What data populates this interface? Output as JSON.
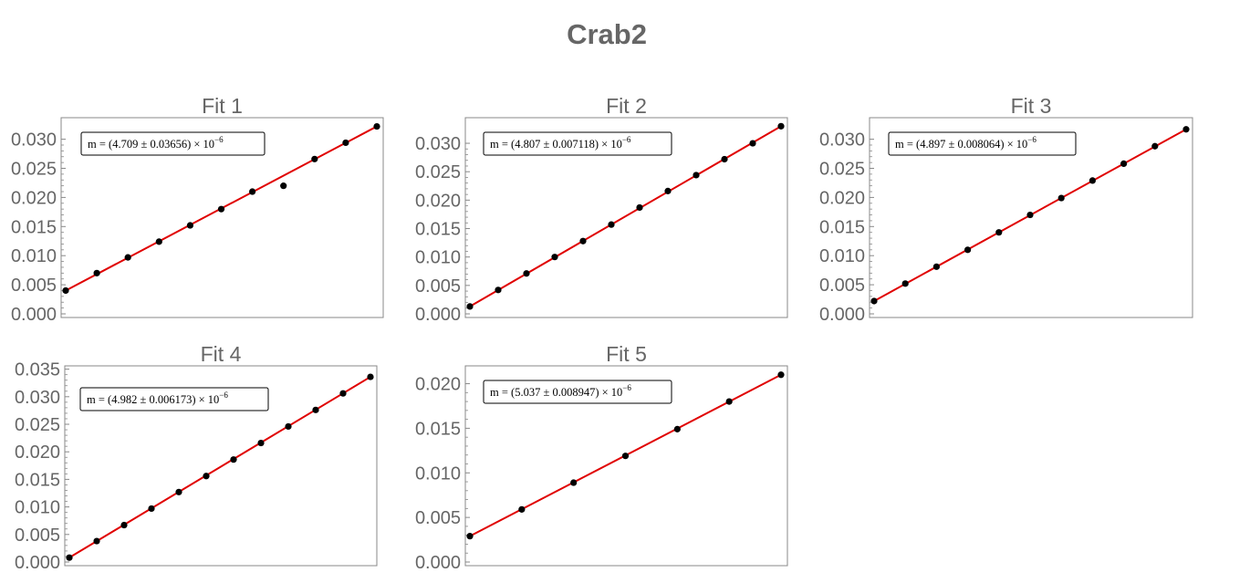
{
  "title": "Crab2",
  "colors": {
    "fit_line": "#e00000",
    "points": "#000000",
    "frame": "#888888",
    "text": "#666666"
  },
  "chart_data": [
    {
      "type": "scatter",
      "title": "Fit 1",
      "annotation": {
        "prefix": "m = (",
        "value": "4.709",
        "pm": "±",
        "error": "0.03656",
        "suffix": ") × 10",
        "exponent": "−6"
      },
      "x": [
        0,
        1,
        2,
        3,
        4,
        5,
        6,
        7,
        8,
        9,
        10
      ],
      "y": [
        0.004,
        0.007,
        0.0097,
        0.0124,
        0.0152,
        0.018,
        0.021,
        0.022,
        0.0266,
        0.0294,
        0.0322
      ],
      "fit": [
        0.004,
        0.0322
      ],
      "yticks": [
        "0.000",
        "0.005",
        "0.010",
        "0.015",
        "0.020",
        "0.025",
        "0.030"
      ],
      "ylim": [
        0,
        0.0337
      ],
      "grid": false
    },
    {
      "type": "scatter",
      "title": "Fit 2",
      "annotation": {
        "prefix": "m = (",
        "value": "4.807",
        "pm": "±",
        "error": "0.007118",
        "suffix": ") × 10",
        "exponent": "−6"
      },
      "x": [
        0,
        1,
        2,
        3,
        4,
        5,
        6,
        7,
        8,
        9,
        10,
        11
      ],
      "y": [
        0.0013,
        0.0042,
        0.0071,
        0.01,
        0.0128,
        0.0157,
        0.0187,
        0.0216,
        0.0244,
        0.0272,
        0.03,
        0.033
      ],
      "fit": [
        0.0013,
        0.033
      ],
      "yticks": [
        "0.000",
        "0.005",
        "0.010",
        "0.015",
        "0.020",
        "0.025",
        "0.030"
      ],
      "ylim": [
        0,
        0.0345
      ],
      "grid": false
    },
    {
      "type": "scatter",
      "title": "Fit 3",
      "annotation": {
        "prefix": "m = (",
        "value": "4.897",
        "pm": "±",
        "error": "0.008064",
        "suffix": ") × 10",
        "exponent": "−6"
      },
      "x": [
        0,
        1,
        2,
        3,
        4,
        5,
        6,
        7,
        8,
        9,
        10
      ],
      "y": [
        0.0022,
        0.0052,
        0.0081,
        0.011,
        0.014,
        0.017,
        0.0199,
        0.0229,
        0.0258,
        0.0288,
        0.0317
      ],
      "fit": [
        0.0022,
        0.0317
      ],
      "yticks": [
        "0.000",
        "0.005",
        "0.010",
        "0.015",
        "0.020",
        "0.025",
        "0.030"
      ],
      "ylim": [
        0,
        0.0337
      ],
      "grid": false
    },
    {
      "type": "scatter",
      "title": "Fit 4",
      "annotation": {
        "prefix": "m = (",
        "value": "4.982",
        "pm": "±",
        "error": "0.006173",
        "suffix": ") × 10",
        "exponent": "−6"
      },
      "x": [
        0,
        1,
        2,
        3,
        4,
        5,
        6,
        7,
        8,
        9,
        10,
        11
      ],
      "y": [
        0.0008,
        0.0038,
        0.0067,
        0.0097,
        0.0127,
        0.0156,
        0.0186,
        0.0216,
        0.0246,
        0.0276,
        0.0306,
        0.0336
      ],
      "fit": [
        0.0008,
        0.0336
      ],
      "yticks": [
        "0.000",
        "0.005",
        "0.010",
        "0.015",
        "0.020",
        "0.025",
        "0.030",
        "0.035"
      ],
      "ylim": [
        0,
        0.0356
      ],
      "grid": false
    },
    {
      "type": "scatter",
      "title": "Fit 5",
      "annotation": {
        "prefix": "m = (",
        "value": "5.037",
        "pm": "±",
        "error": "0.008947",
        "suffix": ") × 10",
        "exponent": "−6"
      },
      "x": [
        0,
        1,
        2,
        3,
        4,
        5,
        6
      ],
      "y": [
        0.0029,
        0.0059,
        0.0089,
        0.0119,
        0.0149,
        0.018,
        0.021
      ],
      "fit": [
        0.0029,
        0.021
      ],
      "yticks": [
        "0.000",
        "0.005",
        "0.010",
        "0.015",
        "0.020"
      ],
      "ylim": [
        0,
        0.022
      ],
      "grid": false
    }
  ]
}
